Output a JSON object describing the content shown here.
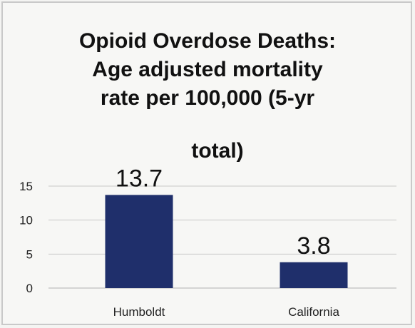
{
  "chart_data": {
    "type": "bar",
    "title_lines": [
      "Opioid Overdose Deaths:",
      "Age adjusted mortality",
      "rate per 100,000 (5-yr",
      "total)"
    ],
    "categories": [
      "Humboldt",
      "California"
    ],
    "values": [
      13.7,
      3.8
    ],
    "data_labels": [
      "13.7",
      "3.8"
    ],
    "y_ticks": [
      0,
      5,
      10,
      15
    ],
    "y_tick_labels": [
      "0",
      "5",
      "10",
      "15"
    ],
    "ylim": [
      0,
      15
    ],
    "xlabel": "",
    "ylabel": "",
    "grid": true,
    "legend": "none",
    "bar_color": "#1f2f6b",
    "grid_color": "#c8c8c8"
  }
}
